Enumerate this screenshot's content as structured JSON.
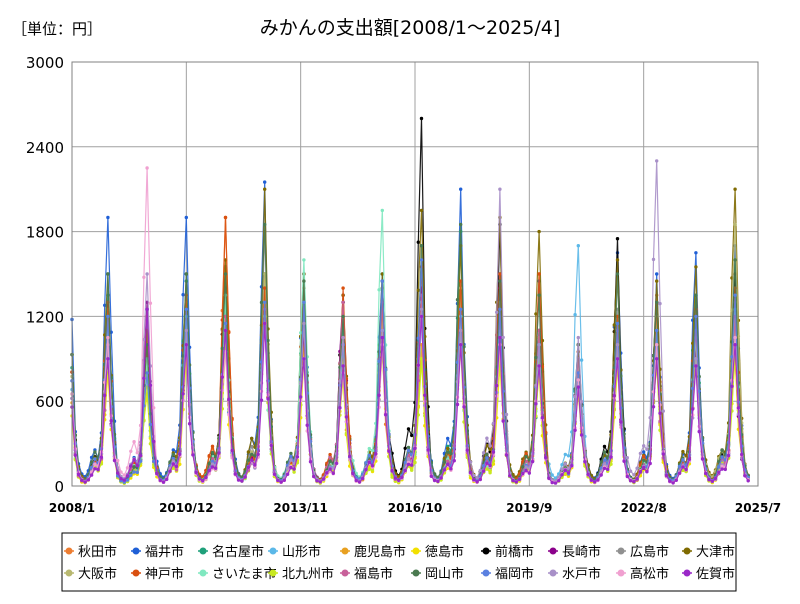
{
  "unit_label": "［単位：円］",
  "chart_data": {
    "type": "line",
    "title": "みかんの支出額[2008/1～2025/4]",
    "xlabel": "",
    "ylabel": "",
    "ylim": [
      0,
      3000
    ],
    "y_ticks": [
      0,
      600,
      1200,
      1800,
      2400,
      3000
    ],
    "x_ticks": [
      "2008/1",
      "2010/12",
      "2013/11",
      "2016/10",
      "2019/9",
      "2022/8",
      "2025/7"
    ],
    "x_range": [
      "2008/1",
      "2025/7"
    ],
    "grid": true,
    "legend_position": "bottom",
    "period": "monthly",
    "peak_month": 12,
    "series": [
      {
        "name": "秋田市",
        "color": "#ED7D31",
        "dec_peaks": [
          1050,
          1200,
          1250,
          1900,
          1300,
          1050,
          1300,
          1000,
          1400,
          1300,
          1150,
          1500,
          900,
          1200,
          1350,
          1100,
          1250
        ]
      },
      {
        "name": "福井市",
        "color": "#1F5FD6",
        "dec_peaks": [
          1900,
          1250,
          1900,
          1400,
          2150,
          1500,
          1300,
          1500,
          1550,
          2100,
          1500,
          1450,
          1000,
          1650,
          1500,
          1650,
          1700
        ]
      },
      {
        "name": "名古屋市",
        "color": "#1FA07A",
        "dec_peaks": [
          1350,
          850,
          1450,
          1300,
          1500,
          1400,
          1150,
          1400,
          1400,
          1800,
          1250,
          900,
          950,
          1050,
          1150,
          1350,
          1600
        ]
      },
      {
        "name": "山形市",
        "color": "#5BB8E8",
        "dec_peaks": [
          1100,
          800,
          1250,
          1100,
          1350,
          1300,
          1000,
          1250,
          1200,
          1400,
          1100,
          1050,
          1700,
          1100,
          1050,
          1100,
          1400
        ]
      },
      {
        "name": "鹿児島市",
        "color": "#E8A020",
        "dec_peaks": [
          950,
          900,
          1100,
          1200,
          1500,
          1000,
          900,
          1300,
          1000,
          1150,
          1000,
          950,
          700,
          1000,
          950,
          1000,
          1200
        ]
      },
      {
        "name": "徳島市",
        "color": "#F2E000",
        "dec_peaks": [
          800,
          650,
          900,
          1000,
          1450,
          900,
          750,
          950,
          900,
          1000,
          850,
          800,
          650,
          850,
          850,
          900,
          900
        ]
      },
      {
        "name": "前橋市",
        "color": "#000000",
        "dec_peaks": [
          1300,
          1000,
          1300,
          1550,
          1300,
          1200,
          1300,
          1450,
          2600,
          1250,
          1850,
          1100,
          1000,
          1750,
          1300,
          1200,
          1500
        ]
      },
      {
        "name": "長崎市",
        "color": "#8B008B",
        "dec_peaks": [
          1000,
          1300,
          1200,
          1200,
          1400,
          1100,
          1350,
          1300,
          1400,
          1150,
          1400,
          1050,
          900,
          1100,
          1000,
          1000,
          1000
        ]
      },
      {
        "name": "広島市",
        "color": "#909090",
        "dec_peaks": [
          1200,
          950,
          1200,
          1550,
          1800,
          1250,
          1000,
          1400,
          1300,
          1200,
          1300,
          1100,
          850,
          1250,
          1200,
          1050,
          1300
        ]
      },
      {
        "name": "大津市",
        "color": "#7F6A00",
        "dec_peaks": [
          1500,
          1100,
          1500,
          1600,
          2100,
          1500,
          1350,
          1500,
          1950,
          1700,
          1900,
          1800,
          1000,
          1600,
          1450,
          1550,
          2100
        ]
      },
      {
        "name": "大阪市",
        "color": "#B8B870",
        "dec_peaks": [
          1250,
          850,
          1300,
          1100,
          1500,
          1300,
          1050,
          1200,
          1300,
          1400,
          1200,
          1050,
          900,
          1100,
          1200,
          1100,
          1850
        ]
      },
      {
        "name": "神戸市",
        "color": "#D95010",
        "dec_peaks": [
          1300,
          1000,
          1350,
          1900,
          1400,
          1400,
          1400,
          1300,
          1550,
          1450,
          1500,
          1500,
          950,
          1200,
          1300,
          1250,
          1400
        ]
      },
      {
        "name": "さいたま市",
        "color": "#80E8C0",
        "dec_peaks": [
          1050,
          900,
          1200,
          1350,
          1200,
          1600,
          1050,
          1950,
          1300,
          1200,
          1100,
          1000,
          900,
          1100,
          1100,
          1050,
          1250
        ]
      },
      {
        "name": "北九州市",
        "color": "#C8E820",
        "dec_peaks": [
          900,
          700,
          1000,
          1000,
          1200,
          900,
          800,
          950,
          900,
          1000,
          900,
          850,
          700,
          900,
          900,
          900,
          1000
        ]
      },
      {
        "name": "福島市",
        "color": "#C8609A",
        "dec_peaks": [
          1000,
          1250,
          1100,
          1200,
          1250,
          1300,
          1300,
          1300,
          1350,
          1250,
          1200,
          1100,
          900,
          1100,
          1000,
          1100,
          1200
        ]
      },
      {
        "name": "岡山市",
        "color": "#4A7A50",
        "dec_peaks": [
          1500,
          1000,
          1500,
          1500,
          1850,
          1450,
          1200,
          1450,
          1700,
          1850,
          1450,
          1350,
          1000,
          1500,
          1300,
          1350,
          1600
        ]
      },
      {
        "name": "福岡市",
        "color": "#5A80E0",
        "dec_peaks": [
          1200,
          800,
          1250,
          1150,
          1300,
          1300,
          1000,
          1450,
          1600,
          1250,
          1250,
          1000,
          800,
          1150,
          1100,
          1200,
          1350
        ]
      },
      {
        "name": "水戸市",
        "color": "#A890C8",
        "dec_peaks": [
          1000,
          1500,
          1100,
          1100,
          1150,
          1150,
          1050,
          1100,
          1250,
          1100,
          2100,
          1000,
          1050,
          1000,
          2300,
          900,
          1050
        ]
      },
      {
        "name": "高松市",
        "color": "#F0A0D0",
        "dec_peaks": [
          1050,
          2250,
          1000,
          950,
          1150,
          900,
          800,
          1000,
          1200,
          1000,
          1000,
          850,
          750,
          900,
          1000,
          850,
          1050
        ]
      },
      {
        "name": "佐賀市",
        "color": "#9A28C8",
        "dec_peaks": [
          900,
          1250,
          1000,
          1100,
          1150,
          900,
          850,
          1050,
          1200,
          1000,
          1050,
          850,
          700,
          900,
          900,
          850,
          1000
        ]
      }
    ]
  }
}
